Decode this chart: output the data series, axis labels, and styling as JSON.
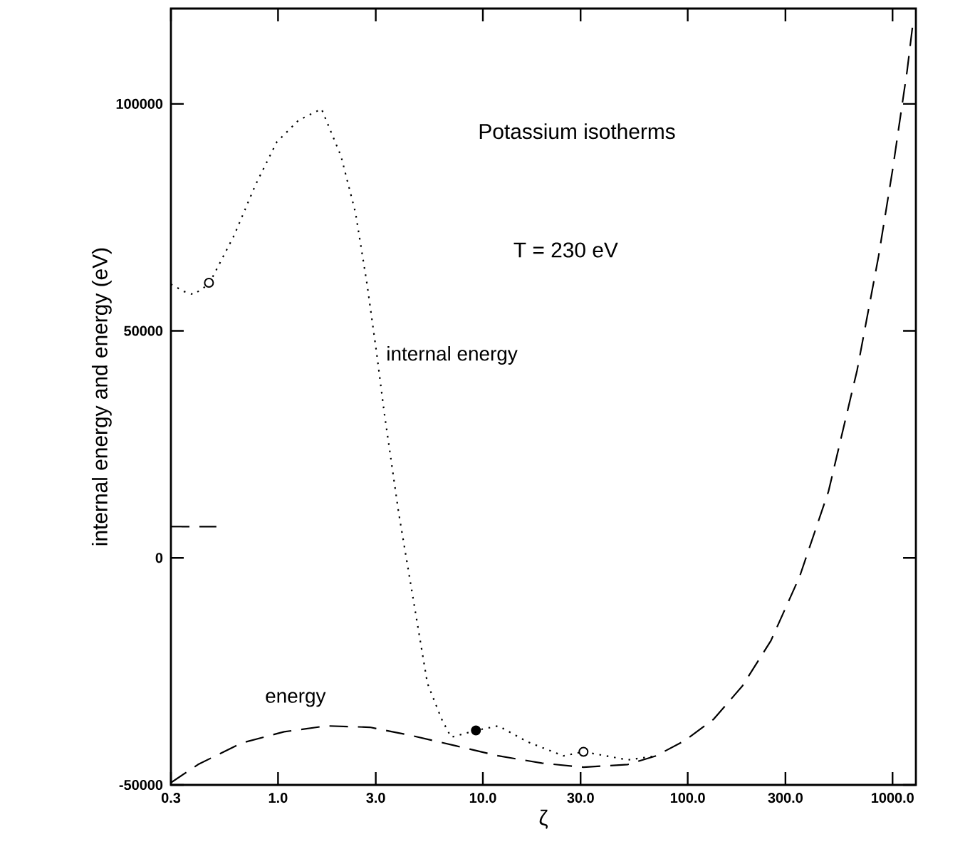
{
  "chart_data": {
    "type": "line",
    "title": "Potassium isotherms",
    "xlabel": "ζ",
    "ylabel": "internal energy and energy (eV)",
    "annotations": [
      "T = 230 eV"
    ],
    "log": "x",
    "grid": false,
    "xlim": [
      0.3,
      1300
    ],
    "ylim": [
      -50000,
      121000
    ],
    "xticks": [
      {
        "value": 0.3,
        "label": "0.3"
      },
      {
        "value": 1,
        "label": "1.0"
      },
      {
        "value": 3,
        "label": "3.0"
      },
      {
        "value": 10,
        "label": "10.0"
      },
      {
        "value": 30,
        "label": "30.0"
      },
      {
        "value": 100,
        "label": "100.0"
      },
      {
        "value": 300,
        "label": "300.0"
      },
      {
        "value": 1000,
        "label": "1000.0"
      }
    ],
    "yticks": [
      -50000,
      0,
      50000,
      100000
    ],
    "series": [
      {
        "name": "internal energy",
        "color": "#000000",
        "line_style": "dotted",
        "x": [
          0.3,
          0.347,
          0.387,
          0.46,
          0.61,
          0.777,
          0.986,
          1.26,
          1.63,
          2.03,
          2.39,
          2.72,
          3.04,
          3.3,
          3.88,
          4.56,
          5.36,
          6.29,
          7.0,
          9.25,
          11.9,
          16.5,
          24.7,
          31,
          43.4,
          51,
          70
        ],
        "values": [
          60300,
          58700,
          58000,
          60300,
          71000,
          82200,
          91600,
          96400,
          98900,
          88500,
          76000,
          60300,
          44600,
          32000,
          10000,
          -8800,
          -27600,
          -35500,
          -39500,
          -38000,
          -37000,
          -40500,
          -43600,
          -42700,
          -43900,
          -44500,
          -43600
        ]
      },
      {
        "name": "energy",
        "color": "#000000",
        "line_style": "dashed",
        "x": [
          0.3,
          0.407,
          0.661,
          1.07,
          1.73,
          2.81,
          4.56,
          7.39,
          11.9,
          19.4,
          31,
          51,
          70,
          97,
          134,
          185,
          255,
          352,
          487,
          672,
          855,
          1000,
          1178,
          1250
        ],
        "values": [
          -49500,
          -45500,
          -40800,
          -38300,
          -37000,
          -37300,
          -39200,
          -41400,
          -43600,
          -45200,
          -46100,
          -45500,
          -43600,
          -40200,
          -35500,
          -28200,
          -18200,
          -4100,
          14700,
          41400,
          66500,
          85400,
          107300,
          116800
        ]
      },
      {
        "color": "#000000",
        "line_style": "dashed",
        "x": [
          0.3,
          0.5
        ],
        "values": [
          6900,
          6900
        ]
      },
      {
        "type": "scatter",
        "color": "#000000",
        "marker": "circle",
        "x": [
          0.46,
          9.25,
          31
        ],
        "values": [
          60600,
          -38000,
          -42700
        ],
        "colors": [
          "#ffffff",
          "#000000",
          "#ffffff"
        ]
      }
    ]
  }
}
